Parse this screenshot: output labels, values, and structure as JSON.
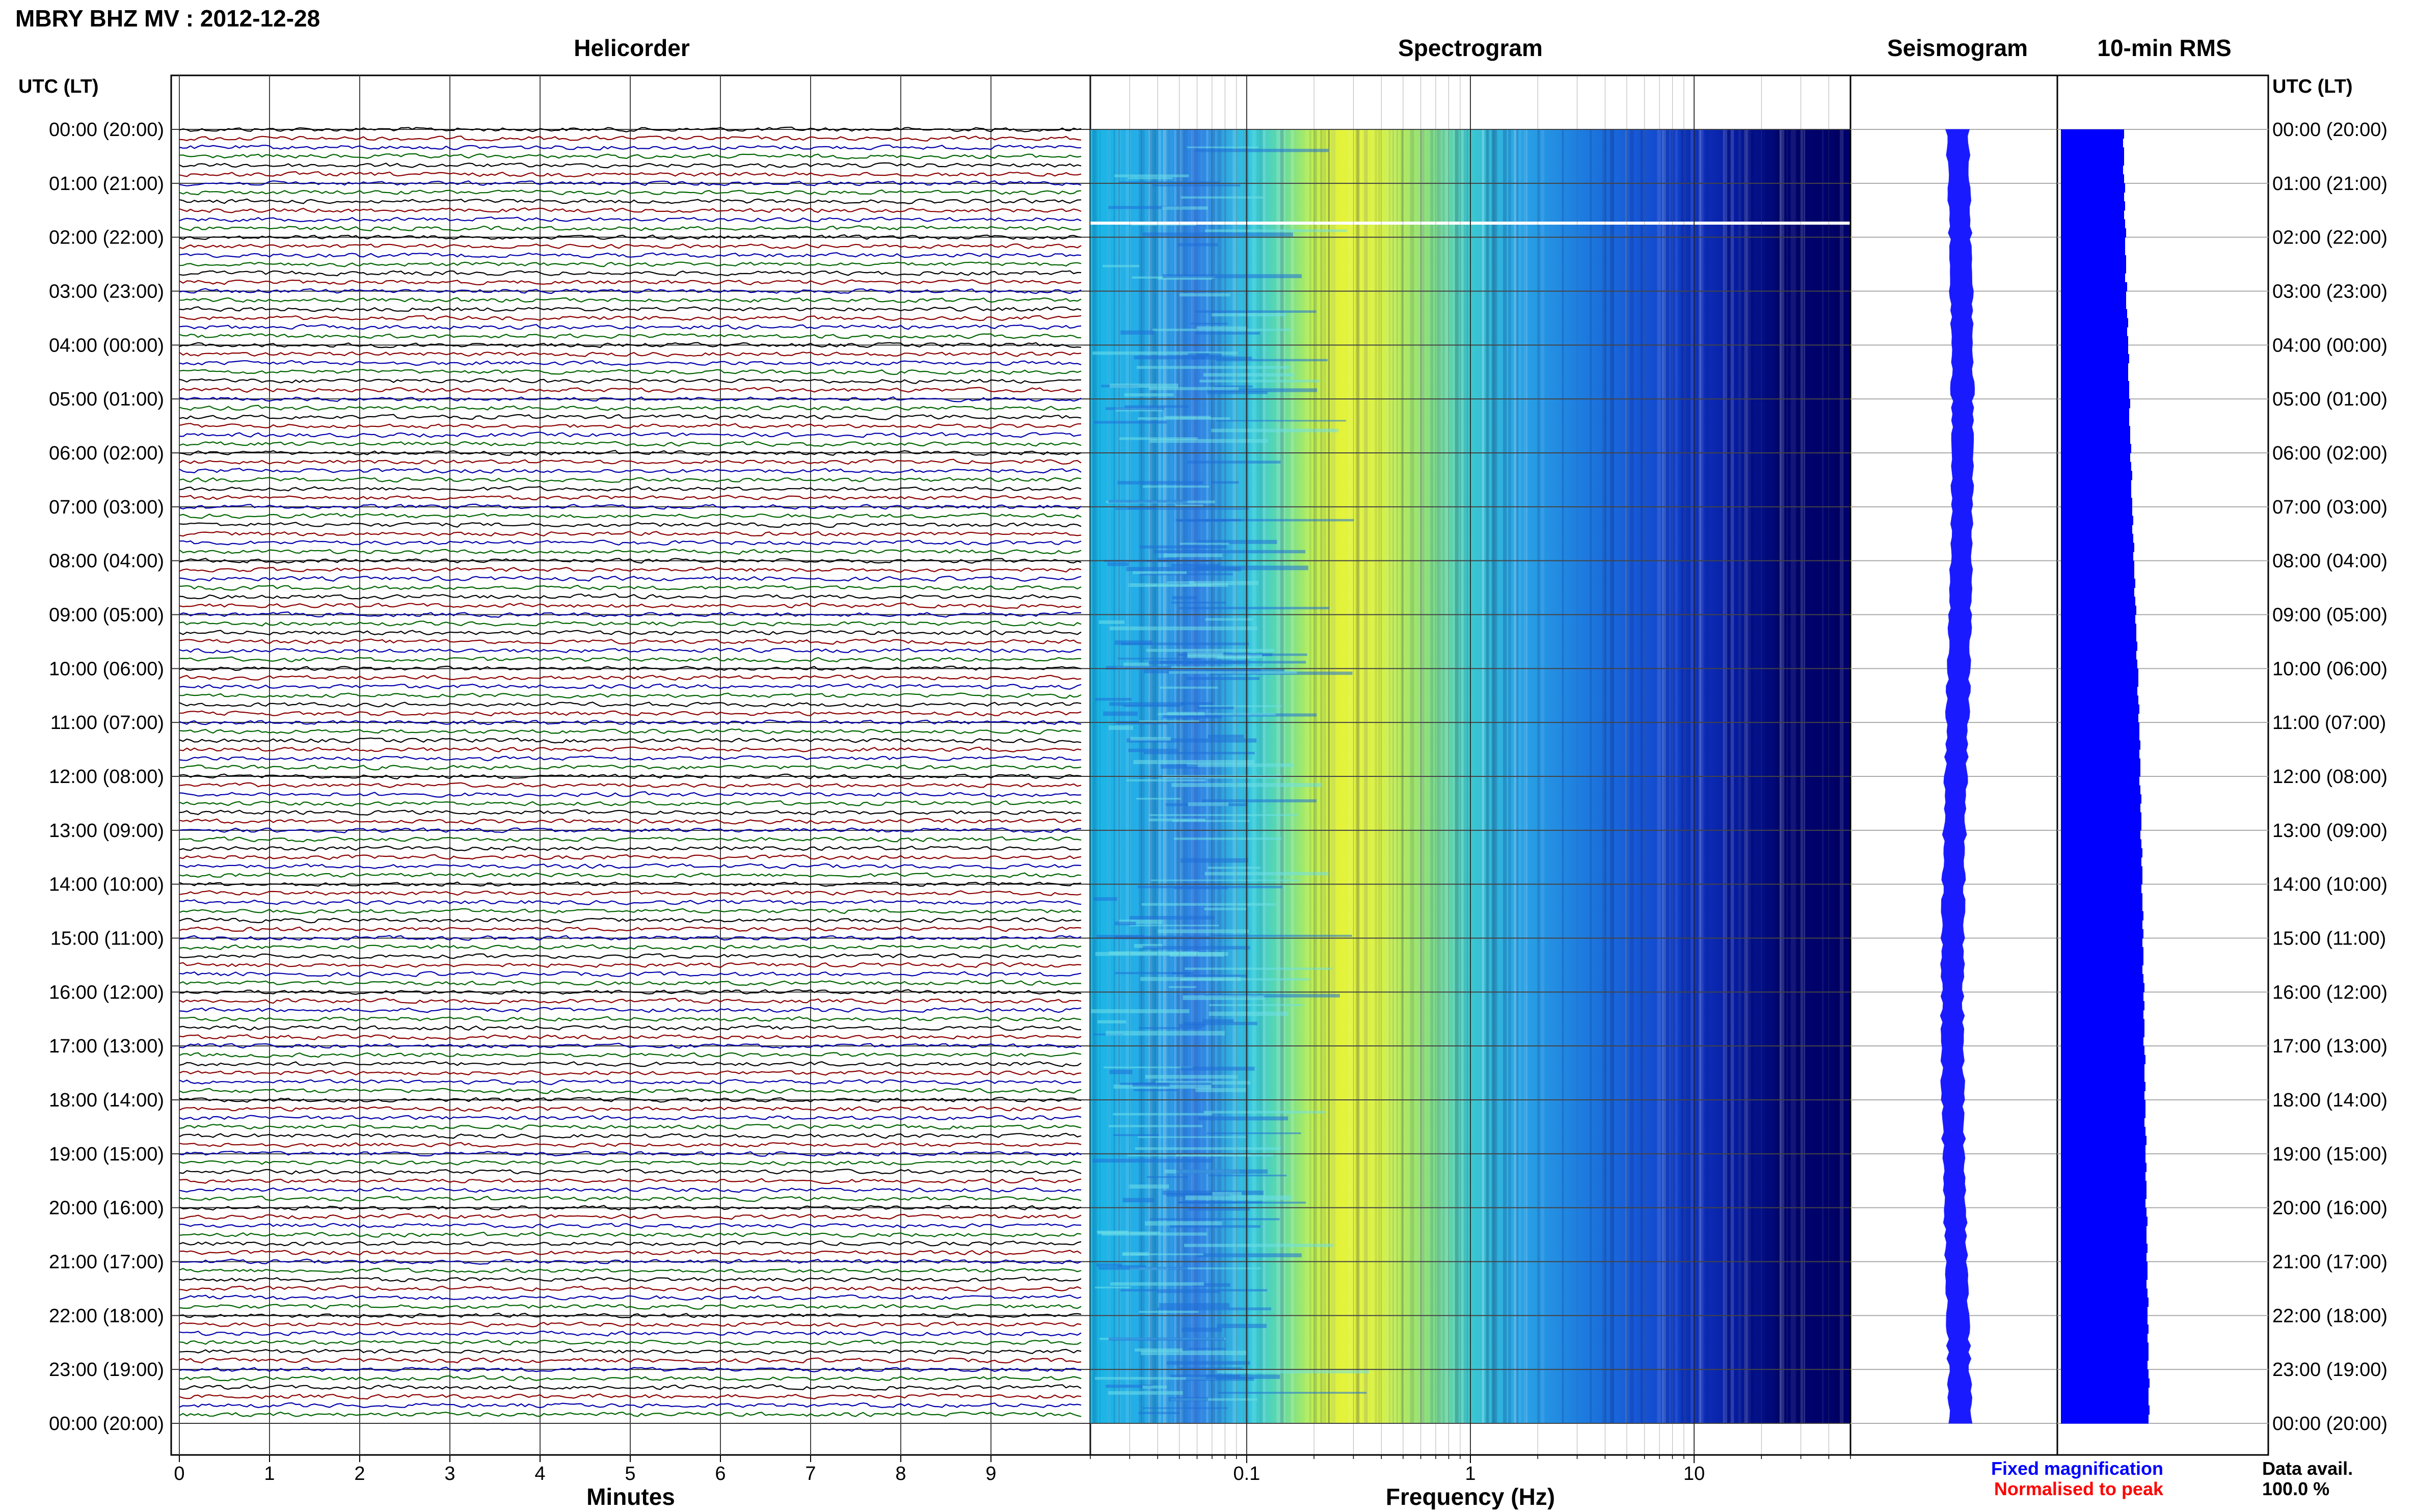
{
  "header": {
    "title": "MBRY BHZ MV : 2012-12-28",
    "utc_label_left": "UTC (LT)",
    "utc_label_right": "UTC (LT)"
  },
  "panels": {
    "helicorder": "Helicorder",
    "spectrogram": "Spectrogram",
    "seismogram": "Seismogram",
    "rms": "10-min RMS"
  },
  "axes": {
    "minutes_label": "Minutes",
    "frequency_label": "Frequency (Hz)",
    "minute_ticks": [
      "0",
      "1",
      "2",
      "3",
      "4",
      "5",
      "6",
      "7",
      "8",
      "9"
    ],
    "frequency_ticks": [
      "0.1",
      "1",
      "10"
    ],
    "time_labels": [
      "00:00 (20:00)",
      "01:00 (21:00)",
      "02:00 (22:00)",
      "03:00 (23:00)",
      "04:00 (00:00)",
      "05:00 (01:00)",
      "06:00 (02:00)",
      "07:00 (03:00)",
      "08:00 (04:00)",
      "09:00 (05:00)",
      "10:00 (06:00)",
      "11:00 (07:00)",
      "12:00 (08:00)",
      "13:00 (09:00)",
      "14:00 (10:00)",
      "15:00 (11:00)",
      "16:00 (12:00)",
      "17:00 (13:00)",
      "18:00 (14:00)",
      "19:00 (15:00)",
      "20:00 (16:00)",
      "21:00 (17:00)",
      "22:00 (18:00)",
      "23:00 (19:00)",
      "00:00 (20:00)"
    ]
  },
  "legend": {
    "fixed": "Fixed magnification",
    "normalised": "Normalised to peak",
    "fixed_color": "#0000ff",
    "normalised_color": "#ff0000"
  },
  "data_avail": {
    "label": "Data avail.",
    "value": "100.0 %"
  },
  "colors": {
    "trace_colors": [
      "#000000",
      "#8b0000",
      "#0000aa",
      "#006400"
    ],
    "rms_fill": "#0000ff",
    "seismo_fill": "#1a1aff",
    "spec_dark": "#00006e"
  },
  "chart_data": {
    "type": "heatmap",
    "time_range_hours": [
      0,
      24
    ],
    "frequency_range_hz": [
      0.02,
      50
    ],
    "frequency_scale": "log",
    "helicorder_minutes_range": [
      0,
      10
    ],
    "data_availability_percent": 100.0,
    "rms_relative": [
      0.62,
      0.61,
      0.62,
      0.62,
      0.61,
      0.62,
      0.63,
      0.62,
      0.63,
      0.62,
      0.63,
      0.64,
      0.63,
      0.63,
      0.64,
      0.64,
      0.63,
      0.65,
      0.64,
      0.64,
      0.65,
      0.66,
      0.65,
      0.66,
      0.66,
      0.67,
      0.66,
      0.66,
      0.67,
      0.67,
      0.68,
      0.67,
      0.67,
      0.68,
      0.68,
      0.69,
      0.68,
      0.69,
      0.7,
      0.69,
      0.69,
      0.7,
      0.7,
      0.71,
      0.7,
      0.71,
      0.72,
      0.71,
      0.72,
      0.72,
      0.73,
      0.72,
      0.73,
      0.74,
      0.73,
      0.74,
      0.74,
      0.75,
      0.74,
      0.75,
      0.76,
      0.76,
      0.75,
      0.76,
      0.77,
      0.76,
      0.77,
      0.77,
      0.78,
      0.77,
      0.78,
      0.78,
      0.77,
      0.78,
      0.79,
      0.78,
      0.79,
      0.79,
      0.78,
      0.79,
      0.8,
      0.79,
      0.8,
      0.8,
      0.79,
      0.8,
      0.8,
      0.81,
      0.8,
      0.81,
      0.8,
      0.81,
      0.81,
      0.8,
      0.81,
      0.82,
      0.81,
      0.82,
      0.81,
      0.82,
      0.82,
      0.81,
      0.82,
      0.83,
      0.82,
      0.82,
      0.83,
      0.82,
      0.83,
      0.83,
      0.82,
      0.83,
      0.84,
      0.83,
      0.83,
      0.84,
      0.83,
      0.84,
      0.84,
      0.83,
      0.84,
      0.85,
      0.84,
      0.84,
      0.85,
      0.84,
      0.85,
      0.85,
      0.84,
      0.85,
      0.86,
      0.85,
      0.85,
      0.86,
      0.85,
      0.86,
      0.86,
      0.85,
      0.86,
      0.87,
      0.86,
      0.86,
      0.87,
      0.86
    ]
  }
}
